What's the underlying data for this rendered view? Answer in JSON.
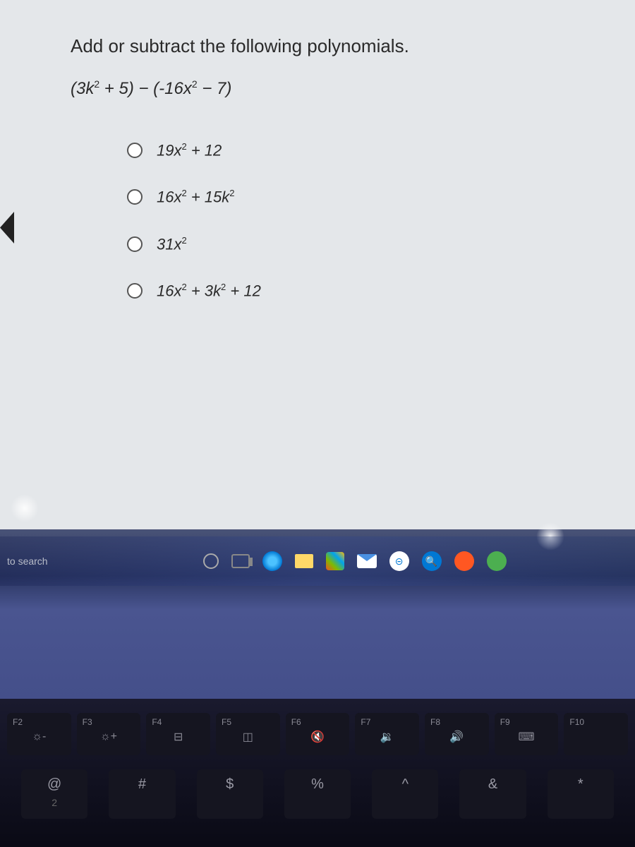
{
  "question": {
    "prompt": "Add or subtract the following polynomials.",
    "expression_html": "(3<i>k</i><sup>2</sup> + 5) − (-16<i>x</i><sup>2</sup> − 7)"
  },
  "options": [
    {
      "html": "19<i>x</i><sup>2</sup> + 12"
    },
    {
      "html": "16<i>x</i><sup>2</sup> + 15<i>k</i><sup>2</sup>"
    },
    {
      "html": "31<i>x</i><sup>2</sup>"
    },
    {
      "html": "16<i>x</i><sup>2</sup> + 3<i>k</i><sup>2</sup> + 12"
    }
  ],
  "taskbar": {
    "search_text": "to search"
  },
  "fkeys": [
    {
      "label": "F2",
      "icon": "☼-"
    },
    {
      "label": "F3",
      "icon": "☼+"
    },
    {
      "label": "F4",
      "icon": "⊟"
    },
    {
      "label": "F5",
      "icon": "◫"
    },
    {
      "label": "F6",
      "icon": "🔇"
    },
    {
      "label": "F7",
      "icon": "🔉"
    },
    {
      "label": "F8",
      "icon": "🔊"
    },
    {
      "label": "F9",
      "icon": "⌨"
    },
    {
      "label": "F10",
      "icon": ""
    }
  ],
  "symrow": [
    {
      "top": "@",
      "sub": "2"
    },
    {
      "top": "#",
      "sub": ""
    },
    {
      "top": "$",
      "sub": ""
    },
    {
      "top": "%",
      "sub": ""
    },
    {
      "top": "^",
      "sub": ""
    },
    {
      "top": "&",
      "sub": ""
    },
    {
      "top": "*",
      "sub": ""
    }
  ],
  "colors": {
    "screen_bg": "#e4e7ea",
    "text": "#2a2a2a",
    "radio_border": "#555",
    "taskbar_tint": "#2a3560",
    "key_bg": "#151520",
    "key_text": "#8a8a95"
  }
}
